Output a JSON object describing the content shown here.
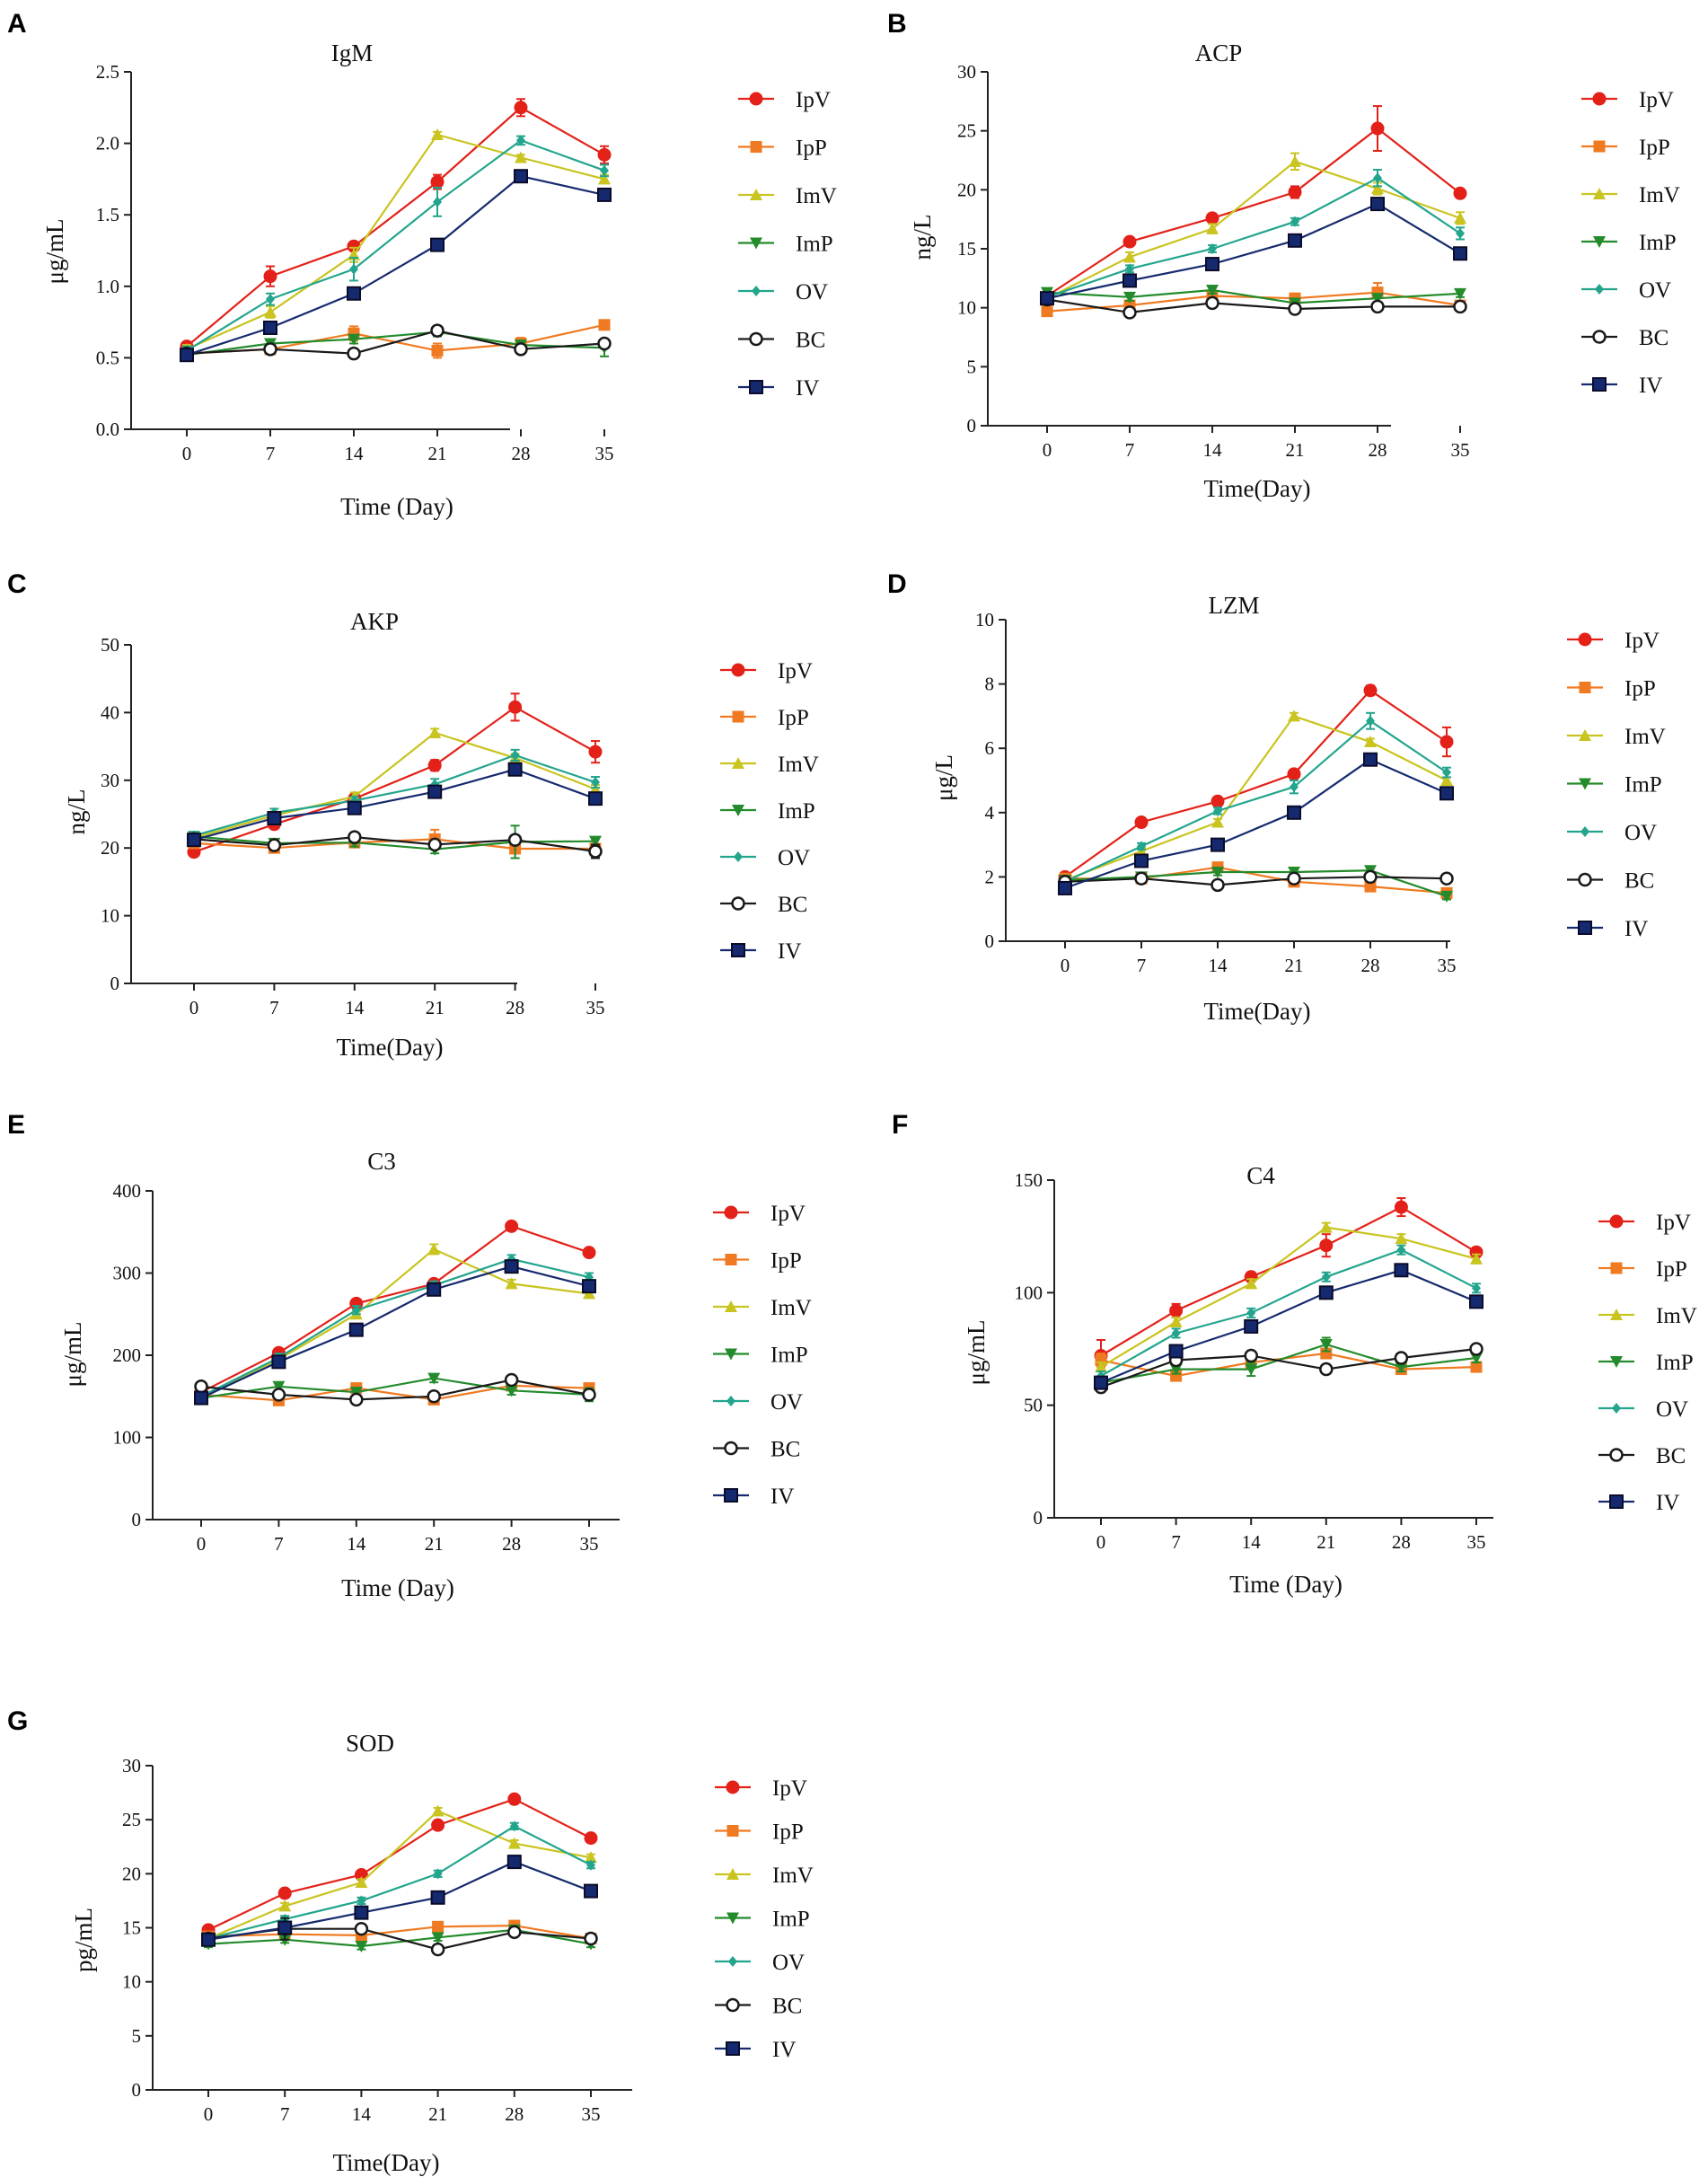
{
  "series_styles": [
    {
      "name": "IpV",
      "color": "#e32119",
      "marker": "circle-filled"
    },
    {
      "name": "IpP",
      "color": "#f07a21",
      "marker": "square-filled"
    },
    {
      "name": "ImV",
      "color": "#c9c420",
      "marker": "triangle-up"
    },
    {
      "name": "ImP",
      "color": "#238b2b",
      "marker": "triangle-down"
    },
    {
      "name": "OV",
      "color": "#23a58d",
      "marker": "diamond"
    },
    {
      "name": "BC",
      "color": "#1a1a1a",
      "marker": "circle-open"
    },
    {
      "name": "IV",
      "color": "#152a6e",
      "marker": "square-blue"
    }
  ],
  "chart_data": [
    {
      "panel": "A",
      "type": "line",
      "title": "IgM",
      "xlabel": "Time (Day)",
      "ylabel": "μg/mL",
      "x": [
        0,
        7,
        14,
        21,
        28,
        35
      ],
      "ylim": [
        0,
        2.5
      ],
      "yticks": [
        "0.0",
        "0.5",
        "1.0",
        "1.5",
        "2.0",
        "2.5"
      ],
      "series": [
        {
          "name": "IpV",
          "values": [
            0.58,
            1.07,
            1.28,
            1.73,
            2.25,
            1.92
          ],
          "errors": [
            0.03,
            0.07,
            0.03,
            0.05,
            0.06,
            0.06
          ]
        },
        {
          "name": "IpP",
          "values": [
            0.53,
            0.56,
            0.67,
            0.55,
            0.6,
            0.73
          ],
          "errors": [
            0.03,
            0.03,
            0.05,
            0.05,
            0.04,
            0.03
          ]
        },
        {
          "name": "ImV",
          "values": [
            0.56,
            0.82,
            1.22,
            2.06,
            1.9,
            1.75
          ],
          "errors": [
            0.03,
            0.04,
            0.05,
            0.02,
            0.02,
            0.03
          ]
        },
        {
          "name": "ImP",
          "values": [
            0.52,
            0.6,
            0.63,
            0.68,
            0.59,
            0.57
          ],
          "errors": [
            0.03,
            0.03,
            0.03,
            0.03,
            0.03,
            0.06
          ]
        },
        {
          "name": "OV",
          "values": [
            0.55,
            0.91,
            1.12,
            1.59,
            2.02,
            1.81
          ],
          "errors": [
            0.03,
            0.04,
            0.08,
            0.1,
            0.03,
            0.04
          ]
        },
        {
          "name": "BC",
          "values": [
            0.53,
            0.56,
            0.53,
            0.69,
            0.56,
            0.6
          ],
          "errors": [
            0.03,
            0.03,
            0.02,
            0.03,
            0.03,
            0.03
          ]
        },
        {
          "name": "IV",
          "values": [
            0.52,
            0.71,
            0.95,
            1.29,
            1.77,
            1.64
          ],
          "errors": [
            0.03,
            0.03,
            0.03,
            0.02,
            0.02,
            0.03
          ]
        }
      ]
    },
    {
      "panel": "B",
      "type": "line",
      "title": "ACP",
      "xlabel": "Time(Day)",
      "ylabel": "ng/L",
      "x": [
        0,
        7,
        14,
        21,
        28,
        35
      ],
      "ylim": [
        0,
        30
      ],
      "yticks": [
        "0",
        "5",
        "10",
        "15",
        "20",
        "25",
        "30"
      ],
      "series": [
        {
          "name": "IpV",
          "values": [
            11.0,
            15.6,
            17.6,
            19.8,
            25.2,
            19.7
          ],
          "errors": [
            0.4,
            0.3,
            0.3,
            0.5,
            1.9,
            0.3
          ]
        },
        {
          "name": "IpP",
          "values": [
            9.7,
            10.2,
            11.0,
            10.8,
            11.3,
            10.2
          ],
          "errors": [
            0.3,
            0.3,
            0.4,
            0.4,
            0.8,
            0.3
          ]
        },
        {
          "name": "ImV",
          "values": [
            10.8,
            14.3,
            16.7,
            22.4,
            20.1,
            17.6
          ],
          "errors": [
            0.3,
            0.4,
            0.4,
            0.7,
            0.5,
            0.5
          ]
        },
        {
          "name": "ImP",
          "values": [
            11.3,
            10.9,
            11.5,
            10.4,
            10.8,
            11.2
          ],
          "errors": [
            0.3,
            0.3,
            0.3,
            0.3,
            0.3,
            0.3
          ]
        },
        {
          "name": "OV",
          "values": [
            10.9,
            13.3,
            15.0,
            17.3,
            21.0,
            16.3
          ],
          "errors": [
            0.3,
            0.3,
            0.3,
            0.3,
            0.7,
            0.5
          ]
        },
        {
          "name": "BC",
          "values": [
            10.7,
            9.6,
            10.4,
            9.9,
            10.1,
            10.1
          ],
          "errors": [
            0.3,
            0.3,
            0.3,
            0.3,
            0.3,
            0.3
          ]
        },
        {
          "name": "IV",
          "values": [
            10.8,
            12.3,
            13.7,
            15.7,
            18.8,
            14.6
          ],
          "errors": [
            0.3,
            0.3,
            0.3,
            0.3,
            0.3,
            0.5
          ]
        }
      ]
    },
    {
      "panel": "C",
      "type": "line",
      "title": "AKP",
      "xlabel": "Time(Day)",
      "ylabel": "ng/L",
      "x": [
        0,
        7,
        14,
        21,
        28,
        35
      ],
      "ylim": [
        0,
        50
      ],
      "yticks": [
        "0",
        "10",
        "20",
        "30",
        "40",
        "50"
      ],
      "series": [
        {
          "name": "IpV",
          "values": [
            19.4,
            23.5,
            27.3,
            32.2,
            40.8,
            34.2
          ],
          "errors": [
            0.6,
            0.6,
            0.6,
            0.8,
            2.0,
            1.6
          ]
        },
        {
          "name": "IpP",
          "values": [
            20.7,
            20.0,
            20.8,
            21.3,
            19.9,
            19.9
          ],
          "errors": [
            0.6,
            0.6,
            0.6,
            1.4,
            1.4,
            0.6
          ]
        },
        {
          "name": "ImV",
          "values": [
            21.5,
            24.8,
            27.6,
            37.0,
            33.3,
            28.7
          ],
          "errors": [
            0.6,
            0.6,
            0.6,
            0.6,
            0.6,
            0.6
          ]
        },
        {
          "name": "ImP",
          "values": [
            21.7,
            20.7,
            20.8,
            19.8,
            20.9,
            21.0
          ],
          "errors": [
            0.6,
            0.6,
            0.6,
            0.6,
            2.4,
            0.6
          ]
        },
        {
          "name": "OV",
          "values": [
            21.8,
            25.2,
            27.0,
            29.4,
            33.7,
            29.7
          ],
          "errors": [
            0.6,
            0.6,
            0.6,
            0.8,
            0.8,
            0.8
          ]
        },
        {
          "name": "BC",
          "values": [
            21.3,
            20.4,
            21.6,
            20.5,
            21.2,
            19.5
          ],
          "errors": [
            0.6,
            0.6,
            0.6,
            0.6,
            0.6,
            1.0
          ]
        },
        {
          "name": "IV",
          "values": [
            21.2,
            24.4,
            25.9,
            28.3,
            31.6,
            27.3
          ],
          "errors": [
            0.6,
            0.6,
            0.6,
            0.6,
            0.8,
            0.6
          ]
        }
      ]
    },
    {
      "panel": "D",
      "type": "line",
      "title": "LZM",
      "xlabel": "Time(Day)",
      "ylabel": "μg/L",
      "x": [
        0,
        7,
        14,
        21,
        28,
        35
      ],
      "ylim": [
        0,
        10
      ],
      "yticks": [
        "0",
        "2",
        "4",
        "6",
        "8",
        "10"
      ],
      "series": [
        {
          "name": "IpV",
          "values": [
            2.0,
            3.7,
            4.35,
            5.2,
            7.8,
            6.2
          ],
          "errors": [
            0.1,
            0.1,
            0.1,
            0.1,
            0.15,
            0.45
          ]
        },
        {
          "name": "IpP",
          "values": [
            1.95,
            1.95,
            2.3,
            1.85,
            1.7,
            1.5
          ],
          "errors": [
            0.1,
            0.1,
            0.1,
            0.15,
            0.1,
            0.1
          ]
        },
        {
          "name": "ImV",
          "values": [
            1.9,
            2.8,
            3.7,
            7.0,
            6.2,
            5.0
          ],
          "errors": [
            0.1,
            0.1,
            0.1,
            0.1,
            0.1,
            0.1
          ]
        },
        {
          "name": "ImP",
          "values": [
            1.9,
            2.0,
            2.15,
            2.15,
            2.2,
            1.4
          ],
          "errors": [
            0.1,
            0.1,
            0.1,
            0.1,
            0.1,
            0.1
          ]
        },
        {
          "name": "OV",
          "values": [
            1.85,
            2.95,
            4.05,
            4.8,
            6.85,
            5.25
          ],
          "errors": [
            0.1,
            0.1,
            0.1,
            0.2,
            0.25,
            0.15
          ]
        },
        {
          "name": "BC",
          "values": [
            1.85,
            1.95,
            1.75,
            1.95,
            2.0,
            1.95
          ],
          "errors": [
            0.1,
            0.1,
            0.1,
            0.1,
            0.1,
            0.1
          ]
        },
        {
          "name": "IV",
          "values": [
            1.65,
            2.5,
            3.0,
            4.0,
            5.65,
            4.6
          ],
          "errors": [
            0.15,
            0.1,
            0.1,
            0.1,
            0.1,
            0.1
          ]
        }
      ]
    },
    {
      "panel": "E",
      "type": "line",
      "title": "C3",
      "xlabel": "Time (Day)",
      "ylabel": "μg/mL",
      "x": [
        0,
        7,
        14,
        21,
        28,
        35
      ],
      "ylim": [
        0,
        400
      ],
      "yticks": [
        "0",
        "100",
        "200",
        "300",
        "400"
      ],
      "series": [
        {
          "name": "IpV",
          "values": [
            155,
            203,
            263,
            287,
            357,
            325
          ],
          "errors": [
            5,
            5,
            5,
            5,
            5,
            5
          ]
        },
        {
          "name": "IpP",
          "values": [
            152,
            145,
            160,
            146,
            163,
            160
          ],
          "errors": [
            5,
            5,
            5,
            5,
            5,
            5
          ]
        },
        {
          "name": "ImV",
          "values": [
            150,
            195,
            250,
            329,
            287,
            275
          ],
          "errors": [
            5,
            5,
            5,
            6,
            5,
            5
          ]
        },
        {
          "name": "ImP",
          "values": [
            148,
            162,
            155,
            172,
            157,
            152
          ],
          "errors": [
            5,
            5,
            5,
            5,
            5,
            8
          ]
        },
        {
          "name": "OV",
          "values": [
            150,
            197,
            255,
            285,
            317,
            295
          ],
          "errors": [
            5,
            5,
            5,
            5,
            5,
            5
          ]
        },
        {
          "name": "BC",
          "values": [
            162,
            152,
            146,
            150,
            170,
            152
          ],
          "errors": [
            5,
            5,
            5,
            5,
            5,
            5
          ]
        },
        {
          "name": "IV",
          "values": [
            148,
            192,
            231,
            280,
            308,
            284
          ],
          "errors": [
            5,
            5,
            5,
            5,
            5,
            5
          ]
        }
      ]
    },
    {
      "panel": "F",
      "type": "line",
      "title": "C4",
      "xlabel": "Time (Day)",
      "ylabel": "μg/mL",
      "x": [
        0,
        7,
        14,
        21,
        28,
        35
      ],
      "ylim": [
        0,
        150
      ],
      "yticks": [
        "0",
        "50",
        "100",
        "150"
      ],
      "series": [
        {
          "name": "IpV",
          "values": [
            72,
            92,
            107,
            121,
            138,
            118
          ],
          "errors": [
            7,
            3,
            2,
            5,
            4,
            2
          ]
        },
        {
          "name": "IpP",
          "values": [
            70,
            63,
            69,
            73,
            66,
            67
          ],
          "errors": [
            3,
            2,
            2,
            2,
            2,
            2
          ]
        },
        {
          "name": "ImV",
          "values": [
            67,
            87,
            104,
            129,
            124,
            115
          ],
          "errors": [
            2,
            2,
            2,
            2,
            2,
            2
          ]
        },
        {
          "name": "ImP",
          "values": [
            60,
            66,
            66,
            77,
            67,
            71
          ],
          "errors": [
            2,
            2,
            3,
            3,
            2,
            2
          ]
        },
        {
          "name": "OV",
          "values": [
            63,
            82,
            91,
            107,
            119,
            102
          ],
          "errors": [
            2,
            2,
            2,
            2,
            2,
            2
          ]
        },
        {
          "name": "BC",
          "values": [
            58,
            70,
            72,
            66,
            71,
            75
          ],
          "errors": [
            2,
            2,
            2,
            2,
            2,
            2
          ]
        },
        {
          "name": "IV",
          "values": [
            60,
            74,
            85,
            100,
            110,
            96
          ],
          "errors": [
            2,
            2,
            2,
            2,
            2,
            2
          ]
        }
      ]
    },
    {
      "panel": "G",
      "type": "line",
      "title": "SOD",
      "xlabel": "Time(Day)",
      "ylabel": "pg/mL",
      "x": [
        0,
        7,
        14,
        21,
        28,
        35
      ],
      "ylim": [
        0,
        30
      ],
      "yticks": [
        "0",
        "5",
        "10",
        "15",
        "20",
        "25",
        "30"
      ],
      "series": [
        {
          "name": "IpV",
          "values": [
            14.8,
            18.2,
            19.9,
            24.5,
            26.9,
            23.3
          ],
          "errors": [
            0.4,
            0.3,
            0.3,
            0.3,
            0.3,
            0.3
          ]
        },
        {
          "name": "IpP",
          "values": [
            14.2,
            14.4,
            14.3,
            15.1,
            15.2,
            14.0
          ],
          "errors": [
            0.4,
            0.3,
            0.3,
            0.3,
            0.3,
            0.3
          ]
        },
        {
          "name": "ImV",
          "values": [
            14.0,
            17.0,
            19.2,
            25.8,
            22.8,
            21.5
          ],
          "errors": [
            0.3,
            0.3,
            0.3,
            0.3,
            0.3,
            0.3
          ]
        },
        {
          "name": "ImP",
          "values": [
            13.5,
            13.9,
            13.3,
            14.1,
            14.8,
            13.5
          ],
          "errors": [
            0.3,
            0.3,
            0.3,
            0.3,
            0.3,
            0.3
          ]
        },
        {
          "name": "OV",
          "values": [
            14.0,
            15.8,
            17.5,
            20.0,
            24.4,
            20.8
          ],
          "errors": [
            0.3,
            0.3,
            0.3,
            0.3,
            0.3,
            0.3
          ]
        },
        {
          "name": "BC",
          "values": [
            14.0,
            14.9,
            14.9,
            13.0,
            14.6,
            14.0
          ],
          "errors": [
            0.3,
            1.0,
            0.3,
            0.3,
            0.3,
            0.3
          ]
        },
        {
          "name": "IV",
          "values": [
            13.9,
            15.0,
            16.4,
            17.8,
            21.1,
            18.4
          ],
          "errors": [
            0.3,
            0.3,
            0.3,
            0.3,
            0.3,
            0.3
          ]
        }
      ]
    }
  ]
}
